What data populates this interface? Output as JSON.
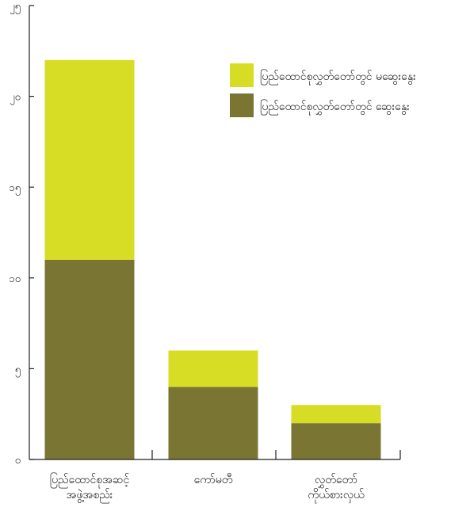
{
  "chart_data": {
    "type": "bar",
    "stacked": true,
    "categories": [
      [
        "ပြည်ထောင်စုအဆင့်",
        "အဖွဲ့အစည်း"
      ],
      [
        "ကော်မတီ"
      ],
      [
        "လွှတ်တော်",
        "ကိုယ်စားလှယ်"
      ]
    ],
    "series": [
      {
        "name": "ပြည်ထောင်စုလွှတ်တော်တွင် ဆွေးနွေး",
        "color": "#7b7533",
        "values": [
          11,
          4,
          2
        ]
      },
      {
        "name": "ပြည်ထောင်စုလွှတ်တော်တွင် မဆွေးနွေး",
        "color": "#d7dc24",
        "values": [
          11,
          2,
          1
        ]
      }
    ],
    "ylim": [
      0,
      25
    ],
    "yticks": [
      {
        "value": 0,
        "label": "၀"
      },
      {
        "value": 5,
        "label": "၅"
      },
      {
        "value": 10,
        "label": "၁၀"
      },
      {
        "value": 15,
        "label": "၁၅"
      },
      {
        "value": 20,
        "label": "၂၀"
      },
      {
        "value": 25,
        "label": "၂၅"
      }
    ],
    "legend": {
      "position": "top-right",
      "order": [
        1,
        0
      ]
    },
    "grid": false,
    "title": "",
    "xlabel": "",
    "ylabel": ""
  }
}
